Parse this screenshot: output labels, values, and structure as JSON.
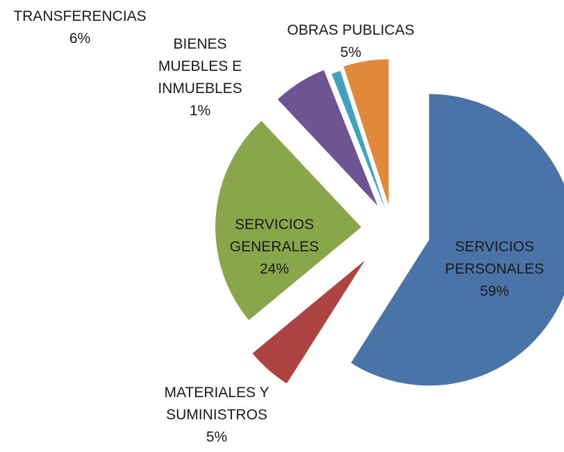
{
  "chart_data": {
    "type": "pie",
    "categories": [
      "SERVICIOS PERSONALES",
      "MATERIALES Y SUMINISTROS",
      "SERVICIOS GENERALES",
      "TRANSFERENCIAS",
      "BIENES MUEBLES E INMUEBLES",
      "OBRAS PUBLICAS"
    ],
    "values": [
      59,
      5,
      24,
      6,
      1,
      5
    ],
    "value_labels": [
      "59%",
      "5%",
      "24%",
      "6%",
      "1%",
      "5%"
    ],
    "colors": [
      "#4a74a8",
      "#ae4441",
      "#89a64a",
      "#6e5492",
      "#3fa2bf",
      "#e0893a"
    ],
    "exploded": true
  }
}
